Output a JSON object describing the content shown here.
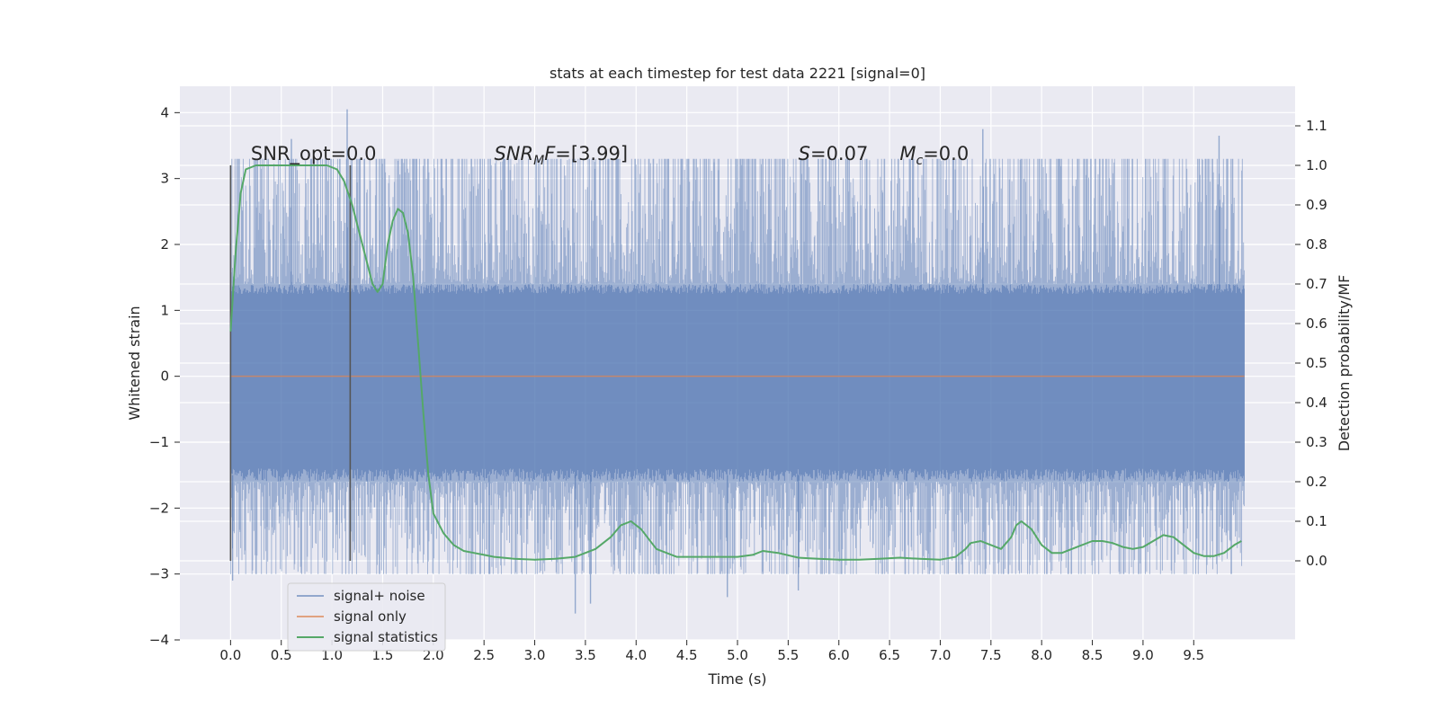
{
  "chart_data": {
    "type": "line",
    "title": "stats at each timestep for test data 2221 [signal=0]",
    "xlabel": "Time (s)",
    "ylabel_left": "Whitened strain",
    "ylabel_right": "Detection probability/MF",
    "xlim": [
      -0.5,
      10.5
    ],
    "ylim_left": [
      -4,
      4.4
    ],
    "ylim_right": [
      -0.2,
      1.2
    ],
    "x_ticks": [
      "0.0",
      "0.5",
      "1.0",
      "1.5",
      "2.0",
      "2.5",
      "3.0",
      "3.5",
      "4.0",
      "4.5",
      "5.0",
      "5.5",
      "6.0",
      "6.5",
      "7.0",
      "7.5",
      "8.0",
      "8.5",
      "9.0",
      "9.5"
    ],
    "y_ticks_left": [
      "4",
      "3",
      "2",
      "1",
      "0",
      "−1",
      "−2",
      "−3",
      "−4"
    ],
    "y_ticks_right": [
      "1.1",
      "1.0",
      "0.9",
      "0.8",
      "0.7",
      "0.6",
      "0.5",
      "0.4",
      "0.3",
      "0.2",
      "0.1",
      "0.0"
    ],
    "grid": true,
    "legend_position": "lower-left",
    "colors": {
      "plot_bg": "#eaeaf2",
      "grid": "#ffffff",
      "noise": "#4c72b0",
      "signal": "#dd8452",
      "stats": "#55a868",
      "vline": "#555555"
    },
    "series": [
      {
        "name": "signal+ noise",
        "axis": "left",
        "x_range": [
          0.0,
          10.0
        ],
        "envelope": {
          "core_low": -1.6,
          "core_high": 1.4,
          "spike_max": 4.05,
          "spike_min": -3.6
        }
      },
      {
        "name": "signal only",
        "axis": "left",
        "x": [
          0.0,
          10.0
        ],
        "y": [
          0.0,
          0.0
        ]
      },
      {
        "name": "signal statistics",
        "axis": "right",
        "x": [
          0.0,
          0.05,
          0.1,
          0.15,
          0.25,
          0.4,
          0.6,
          0.8,
          0.95,
          1.05,
          1.12,
          1.2,
          1.3,
          1.4,
          1.45,
          1.5,
          1.55,
          1.6,
          1.65,
          1.7,
          1.75,
          1.8,
          1.85,
          1.9,
          1.95,
          2.0,
          2.1,
          2.2,
          2.3,
          2.4,
          2.5,
          2.6,
          2.8,
          3.0,
          3.2,
          3.4,
          3.6,
          3.75,
          3.85,
          3.95,
          4.05,
          4.2,
          4.4,
          4.6,
          4.8,
          5.0,
          5.15,
          5.25,
          5.4,
          5.6,
          5.8,
          6.0,
          6.2,
          6.4,
          6.6,
          6.8,
          7.0,
          7.15,
          7.25,
          7.3,
          7.4,
          7.5,
          7.6,
          7.7,
          7.75,
          7.8,
          7.9,
          8.0,
          8.1,
          8.2,
          8.35,
          8.5,
          8.6,
          8.7,
          8.8,
          8.9,
          9.0,
          9.1,
          9.2,
          9.3,
          9.4,
          9.5,
          9.6,
          9.7,
          9.8,
          9.9,
          9.97
        ],
        "y": [
          0.58,
          0.78,
          0.93,
          0.99,
          1.0,
          1.0,
          1.0,
          1.0,
          1.0,
          0.99,
          0.96,
          0.9,
          0.8,
          0.7,
          0.68,
          0.7,
          0.8,
          0.86,
          0.89,
          0.88,
          0.83,
          0.72,
          0.55,
          0.38,
          0.22,
          0.12,
          0.07,
          0.04,
          0.025,
          0.02,
          0.015,
          0.01,
          0.005,
          0.003,
          0.005,
          0.01,
          0.03,
          0.06,
          0.09,
          0.1,
          0.08,
          0.03,
          0.01,
          0.01,
          0.01,
          0.01,
          0.015,
          0.025,
          0.02,
          0.008,
          0.005,
          0.003,
          0.003,
          0.005,
          0.008,
          0.005,
          0.003,
          0.01,
          0.03,
          0.045,
          0.05,
          0.04,
          0.03,
          0.06,
          0.09,
          0.1,
          0.08,
          0.04,
          0.02,
          0.02,
          0.035,
          0.05,
          0.05,
          0.045,
          0.035,
          0.03,
          0.035,
          0.05,
          0.065,
          0.06,
          0.04,
          0.02,
          0.012,
          0.012,
          0.02,
          0.04,
          0.05
        ]
      }
    ],
    "vertical_lines": [
      {
        "x": 0.0,
        "y_range": [
          -2.8,
          3.2
        ]
      },
      {
        "x": 1.18,
        "y_range": [
          -2.8,
          3.2
        ]
      }
    ],
    "annotations": [
      {
        "id": "snr-opt",
        "text": "SNR_opt=0.0",
        "x": 0.2,
        "y": 3.2
      },
      {
        "id": "snr-mf",
        "main": "SNR",
        "sub": "M",
        "suffix": "F=[3.99]",
        "x": 2.6,
        "y": 3.2
      },
      {
        "id": "s-stat",
        "main": "S",
        "suffix": "=0.07",
        "x": 5.6,
        "y": 3.2
      },
      {
        "id": "mc",
        "main": "M",
        "sub": "c",
        "suffix": "=0.0",
        "x": 6.6,
        "y": 3.2
      }
    ]
  }
}
